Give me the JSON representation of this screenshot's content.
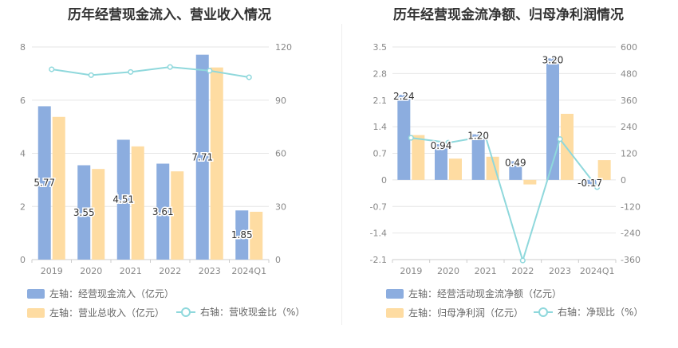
{
  "colors": {
    "bar_blue": "#8caddf",
    "bar_orange": "#fedca2",
    "line_cyan": "#8fd8dc",
    "grid": "#e6e6e6",
    "axis_text": "#888888",
    "label_text": "#333333"
  },
  "chart_data": [
    {
      "type": "bar",
      "title": "历年经营现金流入、营业收入情况",
      "categories": [
        "2019",
        "2020",
        "2021",
        "2022",
        "2023",
        "2024Q1"
      ],
      "left_axis": {
        "min": 0,
        "max": 8,
        "ticks": [
          "0",
          "2",
          "4",
          "6",
          "8"
        ]
      },
      "right_axis": {
        "min": 0,
        "max": 120,
        "ticks": [
          "0",
          "30",
          "60",
          "90",
          "120"
        ]
      },
      "series": [
        {
          "name": "左轴：经营现金流入（亿元）",
          "kind": "bar",
          "axis": "left",
          "color": "#8caddf",
          "values": [
            5.77,
            3.55,
            4.51,
            3.61,
            7.71,
            1.85
          ],
          "labels": [
            "5.77",
            "3.55",
            "4.51",
            "3.61",
            "7.71",
            "1.85"
          ]
        },
        {
          "name": "左轴：营业总收入（亿元）",
          "kind": "bar",
          "axis": "left",
          "color": "#fedca2",
          "values": [
            5.37,
            3.41,
            4.26,
            3.32,
            7.23,
            1.8
          ]
        },
        {
          "name": "右轴：营收现金比（%）",
          "kind": "line",
          "axis": "right",
          "color": "#8fd8dc",
          "values": [
            107.4,
            104.1,
            105.9,
            108.7,
            106.6,
            102.9
          ]
        }
      ]
    },
    {
      "type": "bar",
      "title": "历年经营现金流净额、归母净利润情况",
      "categories": [
        "2019",
        "2020",
        "2021",
        "2022",
        "2023",
        "2024Q1"
      ],
      "left_axis": {
        "min": -2.1,
        "max": 3.5,
        "ticks": [
          "-2.1",
          "-1.4",
          "-0.7",
          "0",
          "0.7",
          "1.4",
          "2.1",
          "2.8",
          "3.5"
        ]
      },
      "right_axis": {
        "min": -360,
        "max": 600,
        "ticks": [
          "-360",
          "-240",
          "-120",
          "0",
          "120",
          "240",
          "360",
          "480",
          "600"
        ]
      },
      "series": [
        {
          "name": "左轴：经营活动现金流净额（亿元）",
          "kind": "bar",
          "axis": "left",
          "color": "#8caddf",
          "values": [
            2.24,
            0.94,
            1.2,
            0.49,
            3.2,
            -0.17
          ],
          "labels": [
            "2.24",
            "0.94",
            "1.20",
            "0.49",
            "3.20",
            "-0.17"
          ]
        },
        {
          "name": "左轴：归母净利润（亿元）",
          "kind": "bar",
          "axis": "left",
          "color": "#fedca2",
          "values": [
            1.18,
            0.56,
            0.61,
            -0.12,
            1.74,
            0.52
          ]
        },
        {
          "name": "右轴：净现比（%）",
          "kind": "line",
          "axis": "right",
          "color": "#8fd8dc",
          "values": [
            189.8,
            167.9,
            196.7,
            -364.0,
            183.9,
            -32.7
          ]
        }
      ]
    }
  ]
}
